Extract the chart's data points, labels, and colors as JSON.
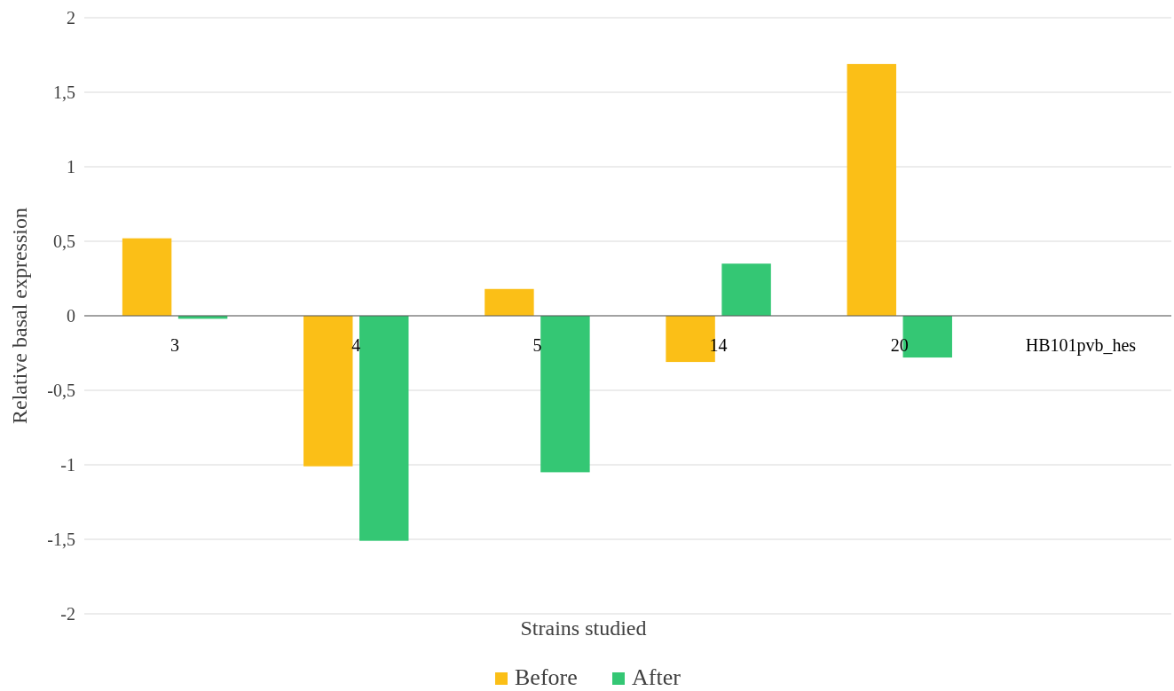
{
  "chart_data": {
    "type": "bar",
    "xlabel": "Strains studied",
    "ylabel": "Relative basal expression",
    "categories": [
      "3",
      "4",
      "5",
      "14",
      "20",
      "HB101pvb_hes"
    ],
    "series": [
      {
        "name": "Before",
        "color": "#fbbf17",
        "values": [
          0.52,
          -1.01,
          0.18,
          -0.31,
          1.69,
          null
        ]
      },
      {
        "name": "After",
        "color": "#34c774",
        "values": [
          -0.02,
          -1.51,
          -1.05,
          0.35,
          -0.28,
          null
        ]
      }
    ],
    "ylim": [
      -2,
      2
    ],
    "yticks": [
      -2,
      {
        "value": -1.5,
        "label": "-1,5"
      },
      -1,
      {
        "value": -0.5,
        "label": "-0,5"
      },
      0,
      {
        "value": 0.5,
        "label": "0,5"
      },
      1,
      {
        "value": 1.5,
        "label": "1,5"
      },
      2
    ],
    "grid": "y",
    "legend": "bottom"
  }
}
